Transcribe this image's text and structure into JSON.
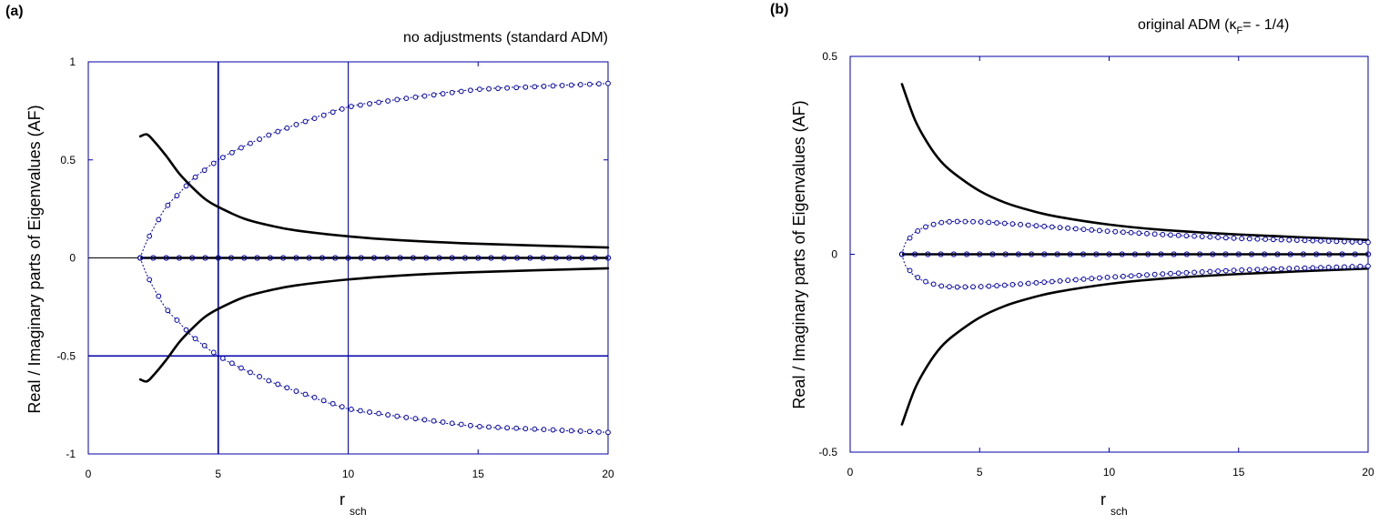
{
  "chart_data": [
    {
      "type": "line",
      "panel_label": "(a)",
      "title": "no adjustments (standard ADM)",
      "ylabel": "Real / Imaginary  parts of Eigenvalues (AF)",
      "xlabel_main": "r",
      "xlabel_sub": "sch",
      "xlim": [
        0,
        20
      ],
      "ylim": [
        -1,
        1
      ],
      "x_ticks": [
        "0",
        "5",
        "10",
        "15",
        "20"
      ],
      "y_ticks": [
        "-1",
        "-0.5",
        "0",
        "0.5",
        "1"
      ],
      "reference_lines": {
        "vertical_x": [
          5,
          10
        ],
        "horizontal_y": [
          -0.5
        ],
        "zero_line": true
      },
      "series": [
        {
          "style": "solid-black",
          "sign": 1,
          "x": [
            2,
            2.25,
            2.5,
            3,
            3.5,
            4,
            4.5,
            5,
            6,
            7,
            8,
            10,
            12,
            15,
            20
          ],
          "y": [
            0.62,
            0.63,
            0.6,
            0.52,
            0.43,
            0.36,
            0.3,
            0.26,
            0.2,
            0.165,
            0.14,
            0.11,
            0.09,
            0.072,
            0.053
          ]
        },
        {
          "style": "solid-black",
          "sign": -1,
          "x": [
            2,
            2.25,
            2.5,
            3,
            3.5,
            4,
            4.5,
            5,
            6,
            7,
            8,
            10,
            12,
            15,
            20
          ],
          "y": [
            -0.62,
            -0.63,
            -0.6,
            -0.52,
            -0.43,
            -0.36,
            -0.3,
            -0.26,
            -0.2,
            -0.165,
            -0.14,
            -0.11,
            -0.09,
            -0.072,
            -0.053
          ]
        },
        {
          "style": "blue-dotted-circles",
          "sign": 1,
          "x": [
            2,
            2.2,
            2.5,
            3,
            3.5,
            4,
            5,
            6,
            7,
            8,
            10,
            12,
            15,
            20
          ],
          "y": [
            0.0,
            0.07,
            0.15,
            0.26,
            0.33,
            0.4,
            0.5,
            0.57,
            0.63,
            0.68,
            0.77,
            0.81,
            0.86,
            0.89
          ]
        },
        {
          "style": "blue-dotted-circles",
          "sign": -1,
          "x": [
            2,
            2.2,
            2.5,
            3,
            3.5,
            4,
            5,
            6,
            7,
            8,
            10,
            12,
            15,
            20
          ],
          "y": [
            0.0,
            -0.07,
            -0.15,
            -0.26,
            -0.33,
            -0.4,
            -0.5,
            -0.57,
            -0.63,
            -0.68,
            -0.77,
            -0.81,
            -0.86,
            -0.89
          ]
        },
        {
          "style": "zero-line-circles",
          "x": [
            2,
            20
          ],
          "y": [
            0,
            0
          ]
        }
      ]
    },
    {
      "type": "line",
      "panel_label": "(b)",
      "title_prefix": "original ADM (κ",
      "title_sub": "F",
      "title_suffix": "=  -  1/4)",
      "ylabel": "Real / Imaginary  parts of Eigenvalues (AF)",
      "xlabel_main": "r",
      "xlabel_sub": "sch",
      "xlim": [
        0,
        20
      ],
      "ylim": [
        -0.5,
        0.5
      ],
      "x_ticks": [
        "0",
        "5",
        "10",
        "15",
        "20"
      ],
      "y_ticks": [
        "-0.5",
        "0",
        "0.5"
      ],
      "reference_lines": {
        "vertical_x": [],
        "horizontal_y": [],
        "zero_line": false
      },
      "series": [
        {
          "style": "solid-black",
          "sign": 1,
          "x": [
            2,
            2.5,
            3,
            3.5,
            4,
            5,
            6,
            7,
            8,
            10,
            12,
            15,
            20
          ],
          "y": [
            0.43,
            0.34,
            0.28,
            0.235,
            0.205,
            0.16,
            0.13,
            0.11,
            0.095,
            0.075,
            0.062,
            0.05,
            0.036
          ]
        },
        {
          "style": "solid-black",
          "sign": -1,
          "x": [
            2,
            2.5,
            3,
            3.5,
            4,
            5,
            6,
            7,
            8,
            10,
            12,
            15,
            20
          ],
          "y": [
            -0.43,
            -0.34,
            -0.28,
            -0.235,
            -0.205,
            -0.16,
            -0.13,
            -0.11,
            -0.095,
            -0.075,
            -0.062,
            -0.05,
            -0.036
          ]
        },
        {
          "style": "blue-dotted-circles",
          "sign": 1,
          "x": [
            2,
            2.15,
            2.5,
            3,
            3.5,
            4,
            5,
            6,
            8,
            10,
            12,
            15,
            20
          ],
          "y": [
            0.0,
            0.03,
            0.055,
            0.072,
            0.08,
            0.083,
            0.082,
            0.078,
            0.068,
            0.058,
            0.05,
            0.04,
            0.03
          ]
        },
        {
          "style": "blue-dotted-circles",
          "sign": -1,
          "x": [
            2,
            2.15,
            2.5,
            3,
            3.5,
            4,
            5,
            6,
            8,
            10,
            12,
            15,
            20
          ],
          "y": [
            0.0,
            -0.03,
            -0.055,
            -0.072,
            -0.08,
            -0.083,
            -0.082,
            -0.078,
            -0.068,
            -0.058,
            -0.05,
            -0.04,
            -0.03
          ]
        },
        {
          "style": "zero-line-circles",
          "x": [
            2,
            20
          ],
          "y": [
            0,
            0
          ]
        }
      ]
    }
  ]
}
